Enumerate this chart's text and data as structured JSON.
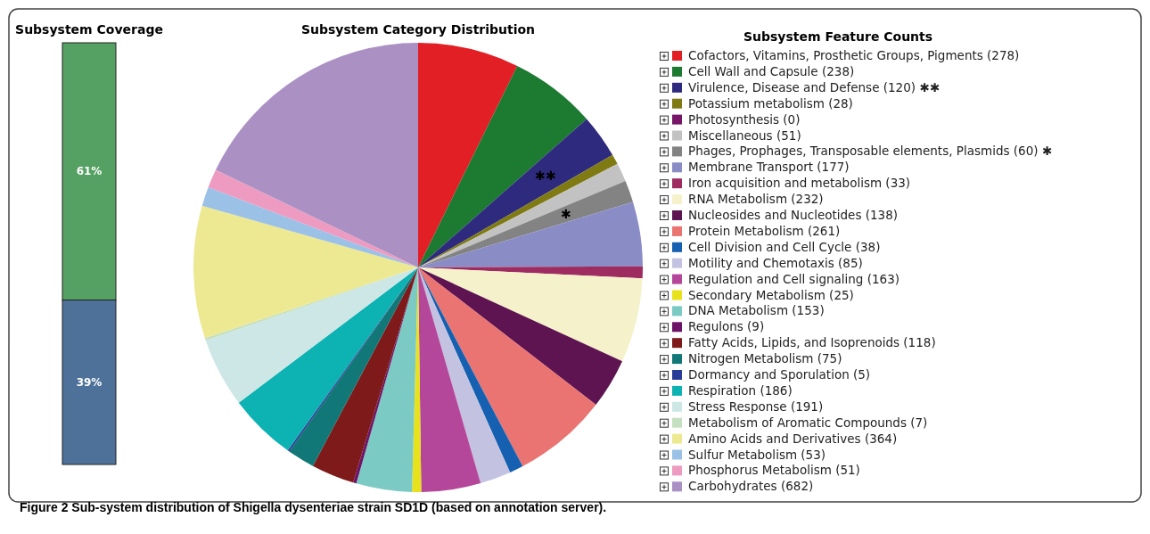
{
  "chart_data": [
    {
      "type": "bar",
      "title": "Subsystem Coverage",
      "categories": [
        null
      ],
      "stacked": true,
      "series": [
        {
          "color": "#4e7199",
          "values": [
            39
          ],
          "value_labels": [
            "39%"
          ]
        },
        {
          "color": "#55a063",
          "values": [
            61
          ],
          "value_labels": [
            "61%"
          ]
        }
      ]
    },
    {
      "type": "pie",
      "title": "Subsystem Category Distribution",
      "legend_title": "Subsystem Feature Counts",
      "legend": "right",
      "categories": [
        "Cofactors, Vitamins, Prosthetic Groups, Pigments (278)",
        "Cell Wall and Capsule (238)",
        "Virulence, Disease and Defense (120)",
        "Potassium metabolism (28)",
        "Photosynthesis (0)",
        "Miscellaneous (51)",
        "Phages, Prophages, Transposable elements, Plasmids (60)",
        "Membrane Transport (177)",
        "Iron acquisition and metabolism (33)",
        "RNA Metabolism (232)",
        "Nucleosides and Nucleotides (138)",
        "Protein Metabolism (261)",
        "Cell Division and Cell Cycle (38)",
        "Motility and Chemotaxis (85)",
        "Regulation and Cell signaling (163)",
        "Secondary Metabolism (25)",
        "DNA Metabolism (153)",
        "Regulons (9)",
        "Fatty Acids, Lipids, and Isoprenoids (118)",
        "Nitrogen Metabolism (75)",
        "Dormancy and Sporulation (5)",
        "Respiration (186)",
        "Stress Response (191)",
        "Metabolism of Aromatic Compounds (7)",
        "Amino Acids and Derivatives (364)",
        "Sulfur Metabolism (53)",
        "Phosphorus Metabolism (51)",
        "Carbohydrates (682)"
      ],
      "values": [
        278,
        238,
        120,
        28,
        0,
        51,
        60,
        177,
        33,
        232,
        138,
        261,
        38,
        85,
        163,
        25,
        153,
        9,
        118,
        75,
        5,
        186,
        191,
        7,
        364,
        53,
        51,
        682
      ],
      "colors": [
        "#e31f26",
        "#1c7a31",
        "#2e2a7e",
        "#7f7a12",
        "#781668",
        "#c2c2c2",
        "#838383",
        "#8a8cc6",
        "#9e2c61",
        "#f5f2cb",
        "#5e1450",
        "#ea7471",
        "#1560b0",
        "#c3c3e1",
        "#b5479a",
        "#e8e21d",
        "#7ccac4",
        "#6e1468",
        "#7f1a1a",
        "#117777",
        "#283d96",
        "#0db2b3",
        "#cde6e6",
        "#c5e0c0",
        "#ede993",
        "#9cc1e6",
        "#ee9bc1",
        "#ab90c4"
      ],
      "annotations": [
        {
          "text": "✱✱",
          "x": "Virulence, Disease and Defense (120)"
        },
        {
          "text": "✱",
          "x": "Phages, Prophages, Transposable elements, Plasmids (60)"
        },
        "Figure 2 Sub-system distribution of Shigella dysenteriae strain SD1D (based on annotation server)."
      ]
    }
  ]
}
